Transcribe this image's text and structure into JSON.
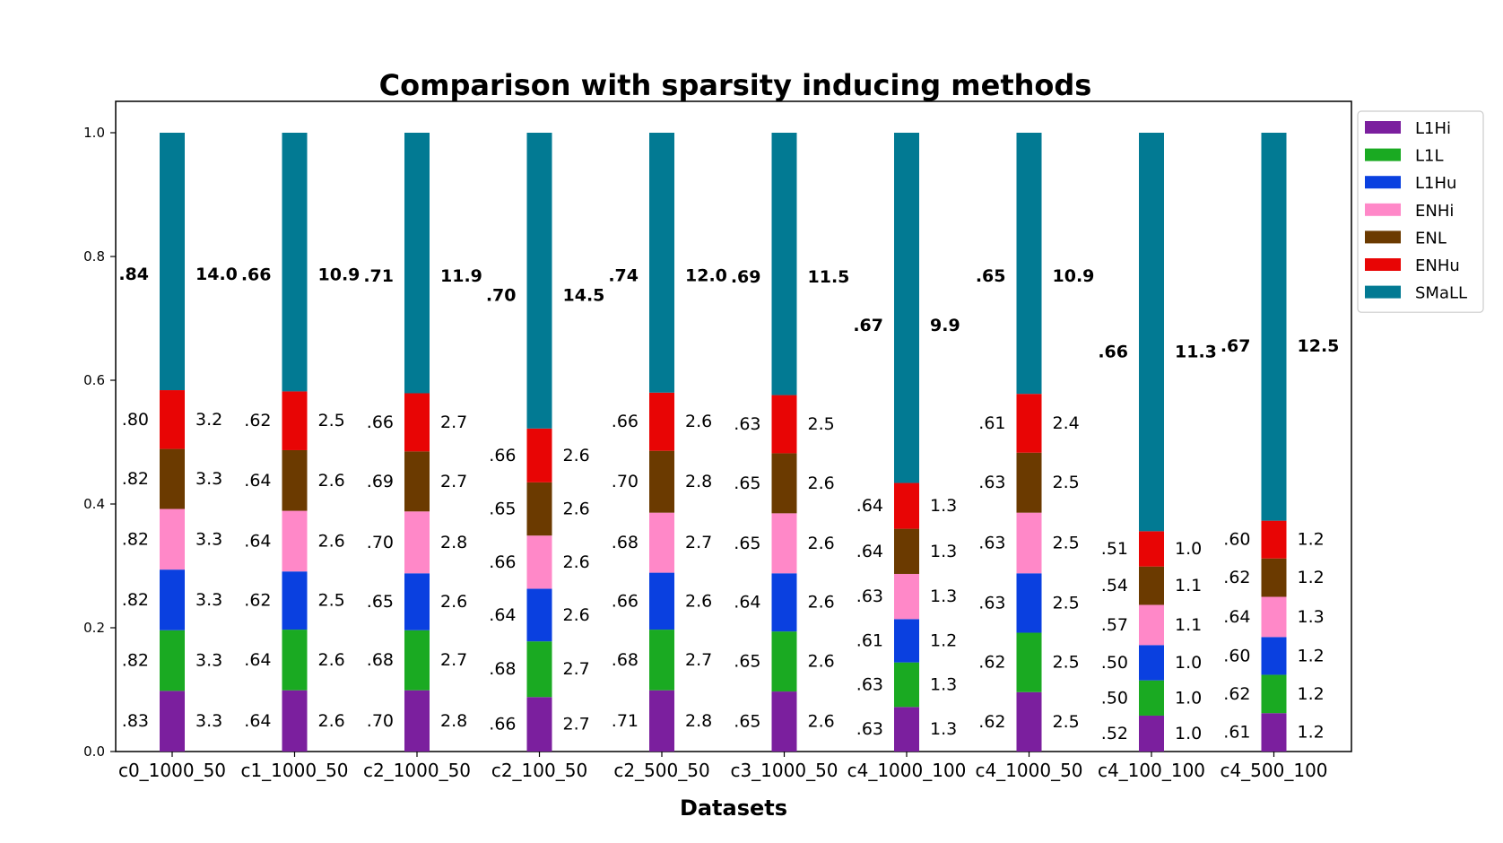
{
  "chart_data": {
    "type": "bar",
    "stacked": true,
    "title": "Comparison with sparsity inducing methods",
    "xlabel": "Datasets",
    "ylabel": "",
    "ylim": [
      0,
      1.05
    ],
    "yticks": [
      "0.0",
      "0.2",
      "0.4",
      "0.6",
      "0.8",
      "1.0"
    ],
    "legend_position": "upper-right-outside",
    "categories": [
      "c0_1000_50",
      "c1_1000_50",
      "c2_1000_50",
      "c2_100_50",
      "c2_500_50",
      "c3_1000_50",
      "c4_1000_100",
      "c4_1000_50",
      "c4_100_100",
      "c4_500_100"
    ],
    "series": [
      {
        "name": "L1Hi",
        "color": "#7B1F9E",
        "values": [
          0.098,
          0.099,
          0.099,
          0.088,
          0.099,
          0.097,
          0.072,
          0.096,
          0.058,
          0.062
        ],
        "left_labels": [
          ".83",
          ".64",
          ".70",
          ".66",
          ".71",
          ".65",
          ".63",
          ".62",
          ".52",
          ".61"
        ],
        "right_labels": [
          "3.3",
          "2.6",
          "2.8",
          "2.7",
          "2.8",
          "2.6",
          "1.3",
          "2.5",
          "1.0",
          "1.2"
        ]
      },
      {
        "name": "L1L",
        "color": "#1AAA22",
        "values": [
          0.098,
          0.098,
          0.097,
          0.09,
          0.098,
          0.097,
          0.072,
          0.096,
          0.057,
          0.062
        ],
        "left_labels": [
          ".82",
          ".64",
          ".68",
          ".68",
          ".68",
          ".65",
          ".63",
          ".62",
          ".50",
          ".62"
        ],
        "right_labels": [
          "3.3",
          "2.6",
          "2.7",
          "2.7",
          "2.7",
          "2.6",
          "1.3",
          "2.5",
          "1.0",
          "1.2"
        ]
      },
      {
        "name": "L1Hu",
        "color": "#0A40E0",
        "values": [
          0.098,
          0.094,
          0.092,
          0.085,
          0.092,
          0.094,
          0.07,
          0.096,
          0.057,
          0.061
        ],
        "left_labels": [
          ".82",
          ".62",
          ".65",
          ".64",
          ".66",
          ".64",
          ".61",
          ".63",
          ".50",
          ".60"
        ],
        "right_labels": [
          "3.3",
          "2.5",
          "2.6",
          "2.6",
          "2.6",
          "2.6",
          "1.2",
          "2.5",
          "1.0",
          "1.2"
        ]
      },
      {
        "name": "ENHi",
        "color": "#FF88C8",
        "values": [
          0.098,
          0.098,
          0.1,
          0.086,
          0.097,
          0.097,
          0.073,
          0.098,
          0.065,
          0.065
        ],
        "left_labels": [
          ".82",
          ".64",
          ".70",
          ".66",
          ".68",
          ".65",
          ".63",
          ".63",
          ".57",
          ".64"
        ],
        "right_labels": [
          "3.3",
          "2.6",
          "2.8",
          "2.6",
          "2.7",
          "2.6",
          "1.3",
          "2.5",
          "1.1",
          "1.3"
        ]
      },
      {
        "name": "ENL",
        "color": "#6B3A00",
        "values": [
          0.097,
          0.098,
          0.097,
          0.086,
          0.1,
          0.097,
          0.073,
          0.097,
          0.062,
          0.062
        ],
        "left_labels": [
          ".82",
          ".64",
          ".69",
          ".65",
          ".70",
          ".65",
          ".64",
          ".63",
          ".54",
          ".62"
        ],
        "right_labels": [
          "3.3",
          "2.6",
          "2.7",
          "2.6",
          "2.8",
          "2.6",
          "1.3",
          "2.5",
          "1.1",
          "1.2"
        ]
      },
      {
        "name": "ENHu",
        "color": "#E80505",
        "values": [
          0.095,
          0.095,
          0.094,
          0.087,
          0.094,
          0.094,
          0.074,
          0.095,
          0.057,
          0.061
        ],
        "left_labels": [
          ".80",
          ".62",
          ".66",
          ".66",
          ".66",
          ".63",
          ".64",
          ".61",
          ".51",
          ".60"
        ],
        "right_labels": [
          "3.2",
          "2.5",
          "2.7",
          "2.6",
          "2.6",
          "2.5",
          "1.3",
          "2.4",
          "1.0",
          "1.2"
        ]
      },
      {
        "name": "SMaLL",
        "color": "#027A93",
        "values": [
          0.416,
          0.418,
          0.421,
          0.478,
          0.42,
          0.424,
          0.566,
          0.422,
          0.644,
          0.627
        ],
        "left_labels": [
          ".84",
          ".66",
          ".71",
          ".70",
          ".74",
          ".69",
          ".67",
          ".65",
          ".66",
          ".67"
        ],
        "right_labels": [
          "14.0",
          "10.9",
          "11.9",
          "14.5",
          "12.0",
          "11.5",
          "9.9",
          "10.9",
          "11.3",
          "12.5"
        ]
      }
    ]
  }
}
